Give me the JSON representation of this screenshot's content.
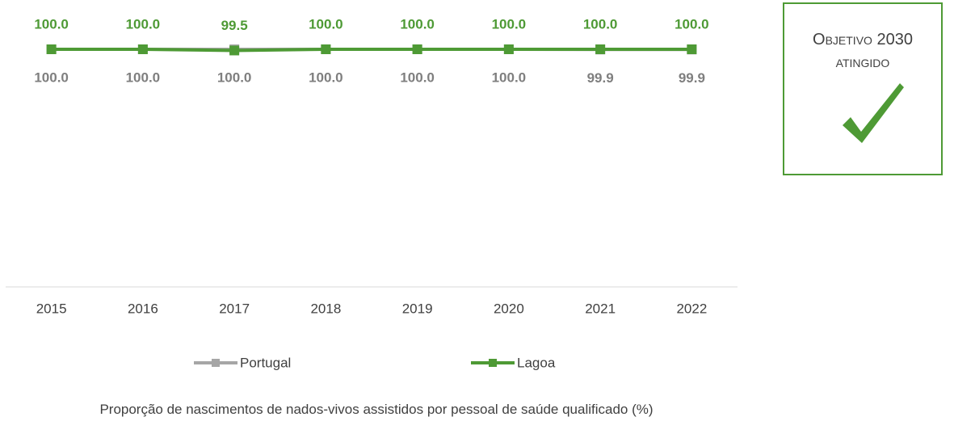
{
  "chart_data": {
    "type": "line",
    "title": "Proporção de nascimentos de nados-vivos assistidos por pessoal de saúde qualificado (%)",
    "annotation": "Objetivo 2030 atingido",
    "categories": [
      "2015",
      "2016",
      "2017",
      "2018",
      "2019",
      "2020",
      "2021",
      "2022"
    ],
    "ylim": [
      0,
      100
    ],
    "legend": "bottom",
    "series": [
      {
        "name": "Portugal",
        "color": "#a6a6a6",
        "values": [
          100,
          100,
          100,
          100,
          100,
          100,
          99.9,
          99.9
        ],
        "value_labels": [
          "100.0",
          "100.0",
          "100.0",
          "100.0",
          "100.0",
          "100.0",
          "99.9",
          "99.9"
        ]
      },
      {
        "name": "Lagoa",
        "color": "#4e9a35",
        "values": [
          100,
          100,
          99.5,
          100,
          100,
          100,
          100,
          100
        ],
        "value_labels": [
          "100.0",
          "100.0",
          "99.5",
          "100.0",
          "100.0",
          "100.0",
          "100.0",
          "100.0"
        ]
      }
    ]
  }
}
